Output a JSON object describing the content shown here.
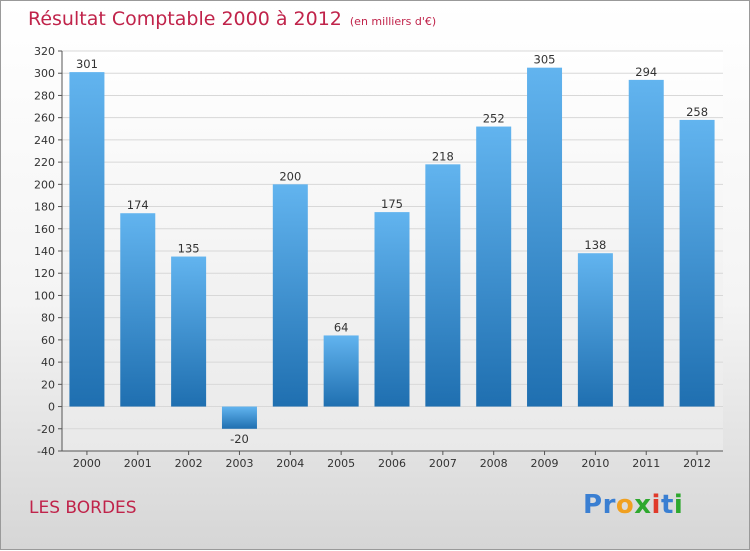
{
  "title": "Résultat Comptable 2000 à 2012",
  "unit": "(en milliers d'€)",
  "commune": "LES BORDES",
  "logo": {
    "letters": [
      {
        "char": "P",
        "color": "#3a7fd2"
      },
      {
        "char": "r",
        "color": "#3a7fd2"
      },
      {
        "char": "o",
        "color": "#f0a020"
      },
      {
        "char": "x",
        "color": "#2ea82e"
      },
      {
        "char": "i",
        "color": "#e03a2a"
      },
      {
        "char": "t",
        "color": "#3a7fd2"
      },
      {
        "char": "i",
        "color": "#2ea82e"
      }
    ]
  },
  "colors": {
    "bar_light": "#62b4ef",
    "bar_dark": "#1f6fb0",
    "title": "#c0234a",
    "grid": "#d8d8d8"
  },
  "chart_data": {
    "type": "bar",
    "title": "Résultat Comptable 2000 à 2012",
    "xlabel": "",
    "ylabel": "(en milliers d'€)",
    "categories": [
      "2000",
      "2001",
      "2002",
      "2003",
      "2004",
      "2005",
      "2006",
      "2007",
      "2008",
      "2009",
      "2010",
      "2011",
      "2012"
    ],
    "values": [
      301,
      174,
      135,
      -20,
      200,
      64,
      175,
      218,
      252,
      305,
      138,
      294,
      258
    ],
    "ylim": [
      -40,
      320
    ],
    "yticks": [
      -40,
      -20,
      0,
      20,
      40,
      60,
      80,
      100,
      120,
      140,
      160,
      180,
      200,
      220,
      240,
      260,
      280,
      300,
      320
    ],
    "grid": true
  }
}
